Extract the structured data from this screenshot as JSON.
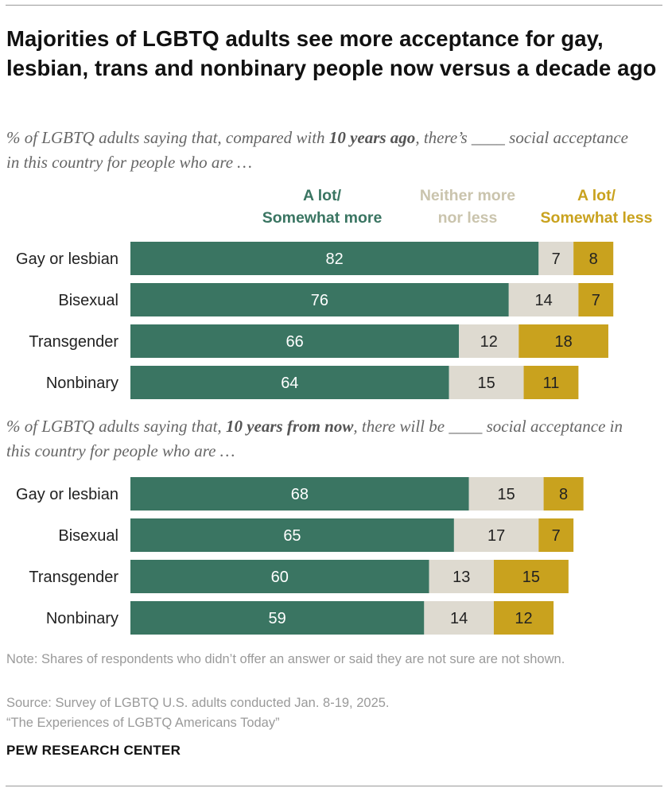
{
  "title": "Majorities of LGBTQ adults see more acceptance for gay, lesbian, trans and nonbinary people now versus a decade ago",
  "subtitle1": {
    "pre": "% of LGBTQ  adults saying that, compared with ",
    "bold": "10 years ago",
    "post": ", there’s ____ social acceptance in this country for people who are …"
  },
  "subtitle2": {
    "pre": "% of LGBTQ  adults saying that, ",
    "bold": "10 years from now",
    "post": ", there will be ____ social acceptance in this country for people who are …"
  },
  "legend": {
    "more_line1": "A lot/",
    "more_line2": "Somewhat more",
    "neither_line1": "Neither more",
    "neither_line2": "nor less",
    "less_line1": "A lot/",
    "less_line2": "Somewhat less"
  },
  "colors": {
    "more": "#3a7562",
    "neither": "#dedad0",
    "less": "#c9a21e",
    "more_text": "#ffffff",
    "other_text": "#222222"
  },
  "chart_data": [
    {
      "type": "bar",
      "orientation": "horizontal",
      "stacked": true,
      "categories": [
        "Gay or lesbian",
        "Bisexual",
        "Transgender",
        "Nonbinary"
      ],
      "series": [
        {
          "name": "A lot/ Somewhat more",
          "values": [
            82,
            76,
            66,
            64
          ]
        },
        {
          "name": "Neither more nor less",
          "values": [
            7,
            14,
            12,
            15
          ]
        },
        {
          "name": "A lot/ Somewhat less",
          "values": [
            8,
            7,
            18,
            11
          ]
        }
      ]
    },
    {
      "type": "bar",
      "orientation": "horizontal",
      "stacked": true,
      "categories": [
        "Gay or lesbian",
        "Bisexual",
        "Transgender",
        "Nonbinary"
      ],
      "series": [
        {
          "name": "A lot/ Somewhat more",
          "values": [
            68,
            65,
            60,
            59
          ]
        },
        {
          "name": "Neither more nor less",
          "values": [
            15,
            17,
            13,
            14
          ]
        },
        {
          "name": "A lot/ Somewhat less",
          "values": [
            8,
            7,
            15,
            12
          ]
        }
      ]
    }
  ],
  "notes": {
    "note": "Note: Shares of respondents who didn’t offer an answer or said they are not sure are not shown.",
    "source": "Source: Survey of LGBTQ U.S. adults conducted Jan. 8-19, 2025.",
    "report": "“The Experiences of LGBTQ Americans Today”"
  },
  "brand": "PEW RESEARCH CENTER"
}
